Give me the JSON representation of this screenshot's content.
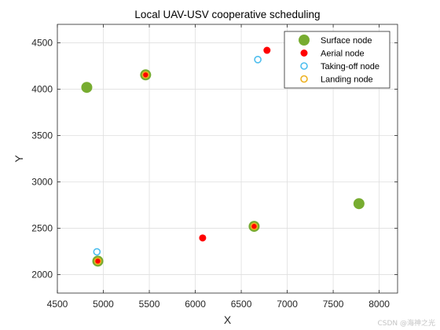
{
  "chart_data": {
    "type": "scatter",
    "title": "Local UAV-USV cooperative scheduling",
    "xlabel": "X",
    "ylabel": "Y",
    "xlim": [
      4500,
      8200
    ],
    "ylim": [
      1800,
      4700
    ],
    "xticks": [
      4500,
      5000,
      5500,
      6000,
      6500,
      7000,
      7500,
      8000
    ],
    "yticks": [
      2000,
      2500,
      3000,
      3500,
      4000,
      4500
    ],
    "grid": true,
    "legend_position": "top-right",
    "series": [
      {
        "name": "Surface node",
        "marker": "filled-circle-large",
        "color": "#77ac30",
        "points": [
          {
            "x": 4820,
            "y": 4020
          },
          {
            "x": 5460,
            "y": 4155
          },
          {
            "x": 4940,
            "y": 2145
          },
          {
            "x": 6640,
            "y": 2520
          },
          {
            "x": 7780,
            "y": 2765
          }
        ]
      },
      {
        "name": "Aerial node",
        "marker": "filled-circle-small",
        "color": "#ff0000",
        "points": [
          {
            "x": 6780,
            "y": 4420
          },
          {
            "x": 6080,
            "y": 2395
          },
          {
            "x": 5460,
            "y": 4155
          },
          {
            "x": 4940,
            "y": 2145
          },
          {
            "x": 6640,
            "y": 2520
          }
        ]
      },
      {
        "name": "Taking-off node",
        "marker": "open-circle",
        "color": "#4dbeee",
        "points": [
          {
            "x": 6680,
            "y": 4320
          },
          {
            "x": 4930,
            "y": 2245
          }
        ]
      },
      {
        "name": "Landing node",
        "marker": "open-circle",
        "color": "#edb120",
        "points": [
          {
            "x": 5460,
            "y": 4155
          },
          {
            "x": 4940,
            "y": 2145
          },
          {
            "x": 6640,
            "y": 2520
          }
        ]
      }
    ]
  },
  "watermark": "CSDN @海神之光"
}
